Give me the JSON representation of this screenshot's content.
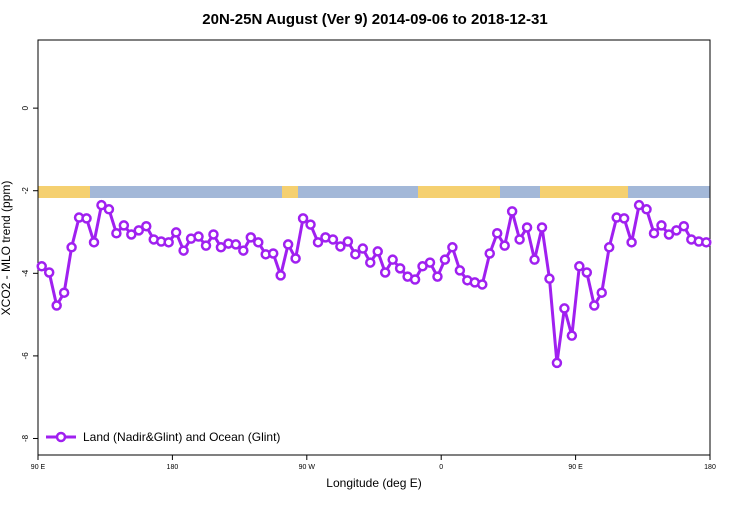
{
  "chart_data": {
    "type": "line",
    "title": "20N-25N August (Ver 9)   2014-09-06 to 2018-12-31",
    "x_label": "Longitude (deg E)",
    "y_label": "XCO2 - MLO trend (ppm)",
    "xlim": [
      90,
      540
    ],
    "xticks": [
      {
        "value": 90,
        "label": "90 E"
      },
      {
        "value": 180,
        "label": "180"
      },
      {
        "value": 270,
        "label": "90 W"
      },
      {
        "value": 360,
        "label": "0"
      },
      {
        "value": 450,
        "label": "90 E"
      },
      {
        "value": 540,
        "label": "180"
      }
    ],
    "ylim": [
      -8.4,
      1.65
    ],
    "yticks": [
      0,
      -2,
      -4,
      -6,
      -8
    ],
    "legend": "bottom-left",
    "x": [
      92.5,
      97.5,
      102.5,
      107.5,
      112.5,
      117.5,
      122.5,
      127.5,
      132.5,
      137.5,
      142.5,
      147.5,
      152.5,
      157.5,
      162.5,
      167.5,
      172.5,
      177.5,
      182.5,
      187.5,
      192.5,
      197.5,
      202.5,
      207.5,
      212.5,
      217.5,
      222.5,
      227.5,
      232.5,
      237.5,
      242.5,
      247.5,
      252.5,
      257.5,
      262.5,
      267.5,
      272.5,
      277.5,
      282.5,
      287.5,
      292.5,
      297.5,
      302.5,
      307.5,
      312.5,
      317.5,
      322.5,
      327.5,
      332.5,
      337.5,
      342.5,
      347.5,
      352.5,
      357.5,
      362.5,
      367.5,
      372.5,
      377.5,
      382.5,
      387.5,
      392.5,
      397.5,
      402.5,
      407.5,
      412.5,
      417.5,
      422.5,
      427.5,
      432.5,
      437.5,
      442.5,
      447.5,
      452.5,
      457.5,
      462.5,
      467.5,
      472.5,
      477.5,
      482.5,
      487.5,
      492.5,
      497.5,
      502.5,
      507.5,
      512.5,
      517.5,
      522.5,
      527.5,
      532.5,
      537.5
    ],
    "series": [
      {
        "name": "Land (Nadir&Glint) and Ocean (Glint)",
        "color": "#a020f0",
        "values": [
          -3.83,
          -3.98,
          -4.78,
          -4.47,
          -3.37,
          -2.65,
          -2.67,
          -3.25,
          -2.35,
          -2.45,
          -3.03,
          -2.84,
          -3.06,
          -2.96,
          -2.86,
          -3.18,
          -3.23,
          -3.25,
          -3.01,
          -3.45,
          -3.16,
          -3.11,
          -3.33,
          -3.06,
          -3.37,
          -3.28,
          -3.3,
          -3.45,
          -3.13,
          -3.25,
          -3.54,
          -3.52,
          -4.05,
          -3.3,
          -3.64,
          -2.67,
          -2.82,
          -3.25,
          -3.13,
          -3.18,
          -3.35,
          -3.23,
          -3.54,
          -3.4,
          -3.74,
          -3.47,
          -3.98,
          -3.67,
          -3.88,
          -4.08,
          -4.15,
          -3.83,
          -3.74,
          -4.08,
          -3.67,
          -3.37,
          -3.93,
          -4.17,
          -4.22,
          -4.27,
          -3.52,
          -3.03,
          -3.33,
          -2.5,
          -3.18,
          -2.89,
          -3.67,
          -2.89,
          -4.13,
          -6.17,
          -4.85,
          -5.51,
          -3.83,
          -3.98,
          -4.78,
          -4.47,
          -3.37,
          -2.65,
          -2.67,
          -3.25,
          -2.35,
          -2.45,
          -3.03,
          -2.84,
          -3.06,
          -2.96,
          -2.86,
          -3.18,
          -3.23,
          -3.25
        ]
      }
    ]
  }
}
